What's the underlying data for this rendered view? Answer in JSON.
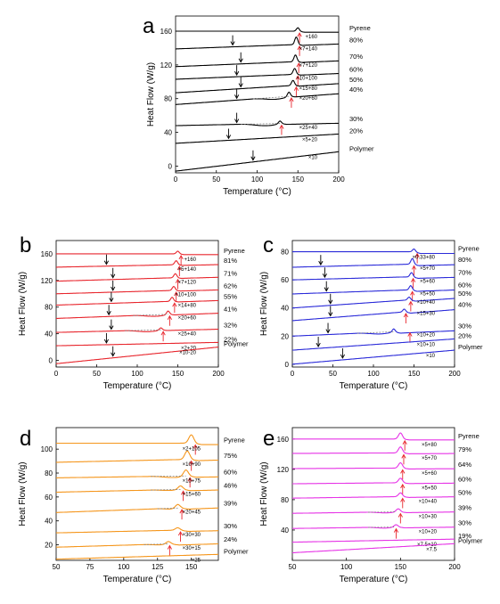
{
  "chart_data": [
    {
      "panel": "a",
      "type": "line",
      "color": "#000000",
      "xlabel": "Temperature (°C)",
      "ylabel": "Heat Flow (W/g)",
      "xlim": [
        0,
        200
      ],
      "ylim": [
        -8,
        178
      ],
      "xticks": [
        "0",
        "50",
        "100",
        "150",
        "200"
      ],
      "yticks": [
        "0",
        "40",
        "80",
        "120",
        "160"
      ],
      "series": [
        {
          "name": "Pyrene",
          "factor": "+160",
          "start": 160,
          "end": 160,
          "peak": 150,
          "pk": 4,
          "down": 147,
          "dip": null,
          "black": null,
          "red": 152
        },
        {
          "name": "80%",
          "factor": "×7+140",
          "start": 139,
          "end": 146,
          "peak": 148,
          "pk": 9,
          "down": 148,
          "dip": null,
          "black": 70,
          "red": 152
        },
        {
          "name": "70%",
          "factor": "×7+120",
          "start": 118,
          "end": 126,
          "peak": 147,
          "pk": 8,
          "down": 147,
          "dip": null,
          "black": 80,
          "red": 151
        },
        {
          "name": "60%",
          "factor": "×10+100",
          "start": 103,
          "end": 111,
          "peak": 146,
          "pk": 7,
          "down": 146,
          "dip": null,
          "black": 75,
          "red": 150
        },
        {
          "name": "50%",
          "factor": "×15+80",
          "start": 87,
          "end": 99,
          "peak": 144,
          "pk": 6,
          "down": 144,
          "dip": null,
          "black": 80,
          "red": 148
        },
        {
          "name": "40%",
          "factor": "×20+60",
          "start": 73,
          "end": 87,
          "peak": 139,
          "pk": 5,
          "down": 139,
          "dip": [
            95,
            139,
            4
          ],
          "black": 75,
          "red": 142
        },
        {
          "name": "30%",
          "factor": "×25+40",
          "start": 48,
          "end": 52,
          "peak": 128,
          "pk": 3,
          "down": 128,
          "dip": [
            80,
            128,
            4
          ],
          "black": 75,
          "red": 130
        },
        {
          "name": "20%",
          "factor": "×5+20",
          "start": 27,
          "end": 38,
          "peak": null,
          "pk": 0,
          "down": null,
          "dip": null,
          "black": 65,
          "red": null
        },
        {
          "name": "Polymer",
          "factor": "×10",
          "start": -6,
          "end": 17,
          "peak": null,
          "pk": 0,
          "down": null,
          "dip": null,
          "black": 95,
          "red": null
        }
      ]
    },
    {
      "panel": "b",
      "type": "line",
      "color": "#e8262d",
      "xlabel": "Temperature (°C)",
      "ylabel": "Heat Flow (W/g)",
      "xlim": [
        0,
        200
      ],
      "ylim": [
        -10,
        180
      ],
      "xticks": [
        "0",
        "50",
        "100",
        "150",
        "200"
      ],
      "yticks": [
        "0",
        "40",
        "80",
        "120",
        "160"
      ],
      "series": [
        {
          "name": "Pyrene",
          "factor": "+160",
          "start": 160,
          "end": 160,
          "peak": 150,
          "pk": 4,
          "down": 147,
          "dip": null,
          "black": null,
          "red": 154
        },
        {
          "name": "81%",
          "factor": "×5+140",
          "start": 140,
          "end": 145,
          "peak": 148,
          "pk": 6,
          "down": 148,
          "dip": null,
          "black": 62,
          "red": 152
        },
        {
          "name": "71%",
          "factor": "×7+120",
          "start": 119,
          "end": 126,
          "peak": 147,
          "pk": 6,
          "down": 147,
          "dip": null,
          "black": 70,
          "red": 150
        },
        {
          "name": "62%",
          "factor": "×10+100",
          "start": 100,
          "end": 107,
          "peak": 145,
          "pk": 6,
          "down": 145,
          "dip": null,
          "black": 70,
          "red": 148
        },
        {
          "name": "55%",
          "factor": "×14+80",
          "start": 83,
          "end": 91,
          "peak": 143,
          "pk": 6,
          "down": 143,
          "dip": null,
          "black": 68,
          "red": 146
        },
        {
          "name": "41%",
          "factor": "×20+60",
          "start": 63,
          "end": 72,
          "peak": 138,
          "pk": 5,
          "down": 138,
          "dip": [
            95,
            138,
            4
          ],
          "black": 65,
          "red": 140
        },
        {
          "name": "32%",
          "factor": "×25+40",
          "start": 42,
          "end": 48,
          "peak": 129,
          "pk": 3,
          "down": 129,
          "dip": [
            85,
            129,
            4
          ],
          "black": 68,
          "red": 132
        },
        {
          "name": "22%",
          "factor": "×2+20",
          "start": 22,
          "end": 27,
          "peak": null,
          "pk": 0,
          "down": null,
          "dip": null,
          "black": 62,
          "red": null
        },
        {
          "name": "Polymer",
          "factor": "×10-20",
          "start": -5,
          "end": 20,
          "peak": null,
          "pk": 0,
          "down": null,
          "dip": null,
          "black": 70,
          "red": null
        }
      ]
    },
    {
      "panel": "c",
      "type": "line",
      "color": "#2b2bd9",
      "xlabel": "Temperature (°C)",
      "ylabel": "Heat Flow (W/g)",
      "xlim": [
        0,
        200
      ],
      "ylim": [
        -2,
        88
      ],
      "xticks": [
        "0",
        "50",
        "100",
        "150",
        "200"
      ],
      "yticks": [
        "0",
        "20",
        "40",
        "60",
        "80"
      ],
      "series": [
        {
          "name": "Pyrene",
          "factor": "×0.33+80",
          "start": 80,
          "end": 80,
          "peak": 150,
          "pk": 2,
          "down": 147,
          "dip": null,
          "black": null,
          "red": 154
        },
        {
          "name": "80%",
          "factor": "×5+70",
          "start": 69,
          "end": 72,
          "peak": 148,
          "pk": 4,
          "down": 148,
          "dip": null,
          "black": 35,
          "red": 150
        },
        {
          "name": "70%",
          "factor": "×5+60",
          "start": 60,
          "end": 63,
          "peak": 147,
          "pk": 3,
          "down": 147,
          "dip": null,
          "black": 40,
          "red": 149
        },
        {
          "name": "60%",
          "factor": "×5+50",
          "start": 50,
          "end": 54,
          "peak": 146,
          "pk": 3,
          "down": 146,
          "dip": null,
          "black": 42,
          "red": 148
        },
        {
          "name": "50%",
          "factor": "×10+40",
          "start": 40,
          "end": 48,
          "peak": 144,
          "pk": 2,
          "down": 144,
          "dip": null,
          "black": 47,
          "red": 146
        },
        {
          "name": "40%",
          "factor": "×15+30",
          "start": 31,
          "end": 40,
          "peak": 138,
          "pk": 2,
          "down": 138,
          "dip": null,
          "black": 47,
          "red": 140
        },
        {
          "name": "30%",
          "factor": "×10+20",
          "start": 20,
          "end": 25,
          "peak": 125,
          "pk": 2,
          "down": 125,
          "dip": [
            80,
            125,
            2
          ],
          "black": 44,
          "red": 145
        },
        {
          "name": "20%",
          "factor": "×10+10",
          "start": 10,
          "end": 18,
          "peak": null,
          "pk": 0,
          "down": null,
          "dip": null,
          "black": 32,
          "red": null
        },
        {
          "name": "Polymer",
          "factor": "×10",
          "start": 0,
          "end": 10,
          "peak": null,
          "pk": 0,
          "down": null,
          "dip": null,
          "black": 62,
          "red": null
        }
      ]
    },
    {
      "panel": "d",
      "type": "line",
      "color": "#f5961c",
      "xlabel": "Temperature (°C)",
      "ylabel": "Heat Flow (W/g)",
      "xlim": [
        50,
        170
      ],
      "ylim": [
        7,
        118
      ],
      "xticks": [
        "50",
        "75",
        "100",
        "125",
        "150"
      ],
      "yticks": [
        "20",
        "40",
        "60",
        "80",
        "100"
      ],
      "series": [
        {
          "name": "Pyrene",
          "factor": "×2+105",
          "start": 105,
          "end": 105,
          "peak": 150,
          "pk": 7,
          "down": 143,
          "dip": null,
          "black": null,
          "red": 153
        },
        {
          "name": "75%",
          "factor": "×10+90",
          "start": 89,
          "end": 92,
          "peak": 147,
          "pk": 7,
          "down": 147,
          "dip": null,
          "black": null,
          "red": 150
        },
        {
          "name": "60%",
          "factor": "×15+75",
          "start": 76,
          "end": 78,
          "peak": 146,
          "pk": 5,
          "down": 146,
          "dip": [
            120,
            146,
            2
          ],
          "black": null,
          "red": 149
        },
        {
          "name": "46%",
          "factor": "×15+60",
          "start": 64,
          "end": 67,
          "peak": 142,
          "pk": 3,
          "down": 142,
          "dip": [
            120,
            142,
            1
          ],
          "black": null,
          "red": 144
        },
        {
          "name": "39%",
          "factor": "×20+45",
          "start": 47,
          "end": 52,
          "peak": 140,
          "pk": 3,
          "down": 140,
          "dip": [
            125,
            140,
            1
          ],
          "black": null,
          "red": 143
        },
        {
          "name": "30%",
          "factor": "×30+30",
          "start": 30,
          "end": 33,
          "peak": 140,
          "pk": 2,
          "down": 140,
          "dip": null,
          "black": null,
          "red": 142
        },
        {
          "name": "24%",
          "factor": "×30+15",
          "start": 18,
          "end": 22,
          "peak": 133,
          "pk": 2,
          "down": 133,
          "dip": [
            115,
            133,
            1
          ],
          "black": null,
          "red": 134
        },
        {
          "name": "Polymer",
          "factor": "×25",
          "start": 8,
          "end": 12,
          "peak": null,
          "pk": 0,
          "down": null,
          "dip": null,
          "black": null,
          "red": null
        }
      ]
    },
    {
      "panel": "e",
      "type": "line",
      "color": "#e633e6",
      "xlabel": "Temperature (°C)",
      "ylabel": "Heat Flow (W/g)",
      "xlim": [
        50,
        200
      ],
      "ylim": [
        0,
        175
      ],
      "xticks": [
        "50",
        "100",
        "150",
        "200"
      ],
      "yticks": [
        "40",
        "80",
        "120",
        "160"
      ],
      "series": [
        {
          "name": "Pyrene",
          "factor": "×5+80",
          "start": 160,
          "end": 160,
          "peak": 150,
          "pk": 8,
          "down": 146,
          "dip": null,
          "black": null,
          "red": 154
        },
        {
          "name": "79%",
          "factor": "×5+70",
          "start": 141,
          "end": 142,
          "peak": 150,
          "pk": 8,
          "down": 148,
          "dip": null,
          "black": null,
          "red": 153
        },
        {
          "name": "64%",
          "factor": "×5+60",
          "start": 121,
          "end": 122,
          "peak": 150,
          "pk": 7,
          "down": 147,
          "dip": null,
          "black": null,
          "red": 152
        },
        {
          "name": "60%",
          "factor": "×5+50",
          "start": 101,
          "end": 103,
          "peak": 150,
          "pk": 6,
          "down": 147,
          "dip": null,
          "black": null,
          "red": 152
        },
        {
          "name": "50%",
          "factor": "×10+40",
          "start": 82,
          "end": 85,
          "peak": 150,
          "pk": 5,
          "down": 147,
          "dip": null,
          "black": null,
          "red": 152
        },
        {
          "name": "39%",
          "factor": "×10+30",
          "start": 62,
          "end": 65,
          "peak": 148,
          "pk": 4,
          "down": 146,
          "dip": [
            120,
            146,
            2
          ],
          "black": null,
          "red": 150
        },
        {
          "name": "30%",
          "factor": "×10+20",
          "start": 42,
          "end": 45,
          "peak": 146,
          "pk": 3,
          "down": 144,
          "dip": [
            120,
            144,
            2
          ],
          "black": null,
          "red": 146
        },
        {
          "name": "19%",
          "factor": "×7.5+10",
          "start": 24,
          "end": 28,
          "peak": null,
          "pk": 0,
          "down": null,
          "dip": null,
          "black": null,
          "red": null
        },
        {
          "name": "Polymer",
          "factor": "×7.5",
          "start": 10,
          "end": 22,
          "peak": null,
          "pk": 0,
          "down": null,
          "dip": null,
          "black": null,
          "red": null
        }
      ]
    }
  ]
}
